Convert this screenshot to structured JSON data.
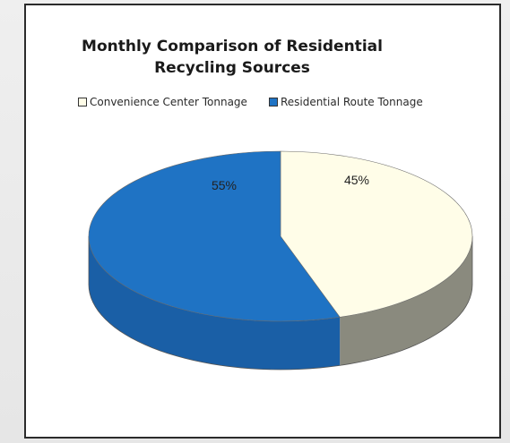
{
  "chart_data": {
    "type": "pie",
    "title": "Monthly Comparison of Residential Recycling Sources",
    "title_lines": [
      "Monthly Comparison of Residential",
      "Recycling Sources"
    ],
    "categories": [
      "Convenience Center Tonnage",
      "Residential Route Tonnage"
    ],
    "values": [
      45,
      55
    ],
    "data_labels": [
      "45%",
      "55%"
    ],
    "colors": [
      "#FFFDE8",
      "#1F73C4"
    ],
    "side_colors": [
      "#8A8A7E",
      "#1A5FA6"
    ],
    "legend_position": "top",
    "style": "3d"
  }
}
